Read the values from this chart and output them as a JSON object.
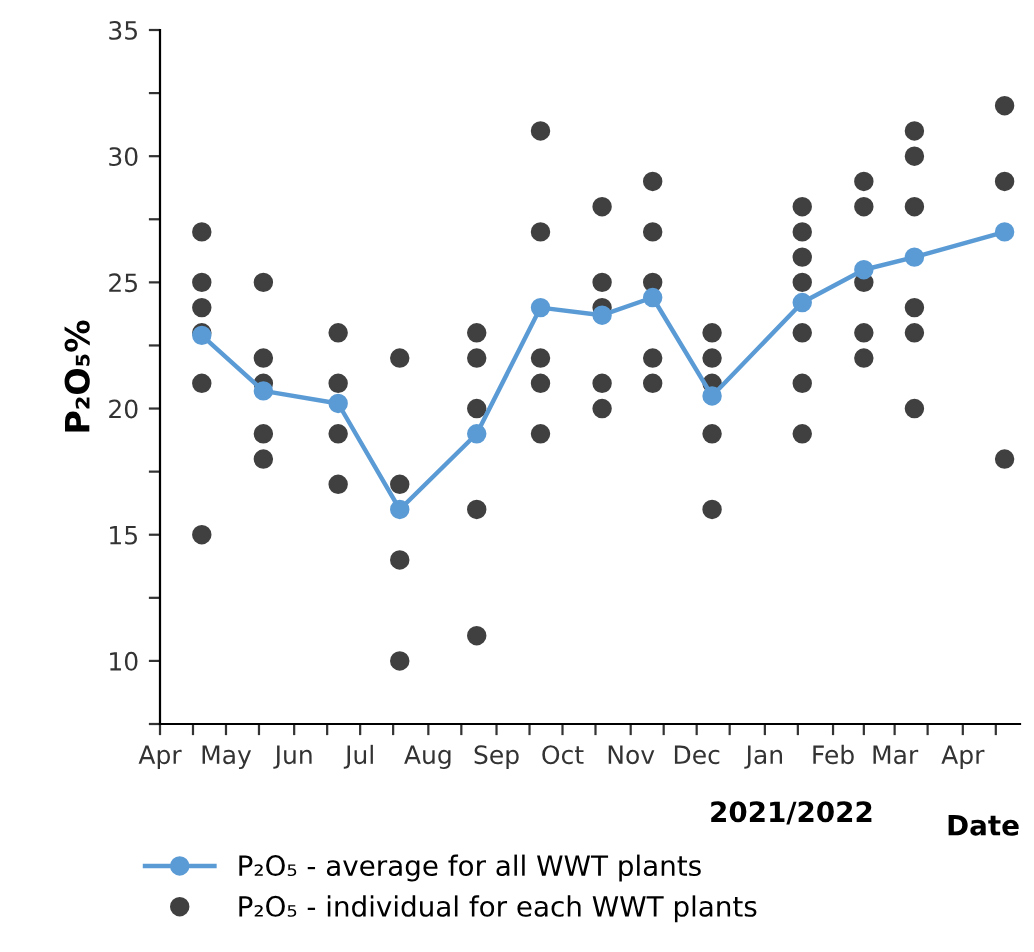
{
  "chart_data": {
    "type": "line",
    "ylabel": "P₂O₅%",
    "xlabel": "Date",
    "annotations": [
      "2021/2022"
    ],
    "series": [
      {
        "name": "P₂O₅ - average for all WWT plants",
        "color": "#5b9bd5",
        "x": [
          "2021-04-20",
          "2021-05-18",
          "2021-06-21",
          "2021-07-19",
          "2021-08-23",
          "2021-09-21",
          "2021-10-19",
          "2021-11-11",
          "2021-12-08",
          "2022-01-18",
          "2022-02-15",
          "2022-03-10",
          "2022-04-20"
        ],
        "values": [
          22.9,
          20.7,
          20.2,
          16.0,
          19.0,
          24.0,
          23.7,
          24.4,
          20.5,
          24.2,
          25.5,
          26.0,
          27.0
        ]
      },
      {
        "name": "P₂O₅ - individual for each WWT plants",
        "type": "scatter",
        "color": "#404040",
        "x": [
          "2021-04-20",
          "2021-04-20",
          "2021-04-20",
          "2021-04-20",
          "2021-04-20",
          "2021-04-20",
          "2021-05-18",
          "2021-05-18",
          "2021-05-18",
          "2021-05-18",
          "2021-05-18",
          "2021-06-21",
          "2021-06-21",
          "2021-06-21",
          "2021-06-21",
          "2021-07-19",
          "2021-07-19",
          "2021-07-19",
          "2021-07-19",
          "2021-08-23",
          "2021-08-23",
          "2021-08-23",
          "2021-08-23",
          "2021-08-23",
          "2021-09-21",
          "2021-09-21",
          "2021-09-21",
          "2021-09-21",
          "2021-09-21",
          "2021-10-19",
          "2021-10-19",
          "2021-10-19",
          "2021-10-19",
          "2021-10-19",
          "2021-11-11",
          "2021-11-11",
          "2021-11-11",
          "2021-11-11",
          "2021-11-11",
          "2021-12-08",
          "2021-12-08",
          "2021-12-08",
          "2021-12-08",
          "2021-12-08",
          "2022-01-18",
          "2022-01-18",
          "2022-01-18",
          "2022-01-18",
          "2022-01-18",
          "2022-01-18",
          "2022-01-18",
          "2022-02-15",
          "2022-02-15",
          "2022-02-15",
          "2022-02-15",
          "2022-02-15",
          "2022-03-10",
          "2022-03-10",
          "2022-03-10",
          "2022-03-10",
          "2022-03-10",
          "2022-03-10",
          "2022-04-20",
          "2022-04-20",
          "2022-04-20"
        ],
        "values": [
          27,
          25,
          24,
          23,
          21,
          15,
          25,
          22,
          21,
          19,
          18,
          23,
          21,
          19,
          17,
          22,
          17,
          14,
          10,
          23,
          22,
          20,
          16,
          11,
          31,
          27,
          22,
          21,
          19,
          28,
          25,
          24,
          21,
          20,
          29,
          27,
          25,
          22,
          21,
          23,
          22,
          21,
          19,
          16,
          28,
          27,
          26,
          25,
          23,
          21,
          19,
          29,
          28,
          25,
          23,
          22,
          31,
          30,
          28,
          24,
          23,
          20,
          32,
          29,
          18
        ]
      }
    ],
    "xlim": [
      "2021-04-01",
      "2022-04-27"
    ],
    "xticks": [
      {
        "value": "2021-04-01",
        "label": "Apr"
      },
      {
        "value": "2021-04-16",
        "label": null
      },
      {
        "value": "2021-05-01",
        "label": "May"
      },
      {
        "value": "2021-05-16",
        "label": null
      },
      {
        "value": "2021-06-01",
        "label": "Jun"
      },
      {
        "value": "2021-06-16",
        "label": null
      },
      {
        "value": "2021-07-01",
        "label": "Jul"
      },
      {
        "value": "2021-07-16",
        "label": null
      },
      {
        "value": "2021-08-01",
        "label": "Aug"
      },
      {
        "value": "2021-08-16",
        "label": null
      },
      {
        "value": "2021-09-01",
        "label": "Sep"
      },
      {
        "value": "2021-09-16",
        "label": null
      },
      {
        "value": "2021-10-01",
        "label": "Oct"
      },
      {
        "value": "2021-10-16",
        "label": null
      },
      {
        "value": "2021-11-01",
        "label": "Nov"
      },
      {
        "value": "2021-11-16",
        "label": null
      },
      {
        "value": "2021-12-01",
        "label": "Dec"
      },
      {
        "value": "2021-12-16",
        "label": null
      },
      {
        "value": "2022-01-01",
        "label": "Jan"
      },
      {
        "value": "2022-01-16",
        "label": null
      },
      {
        "value": "2022-02-01",
        "label": "Feb"
      },
      {
        "value": "2022-02-15",
        "label": null
      },
      {
        "value": "2022-03-01",
        "label": "Mar"
      },
      {
        "value": "2022-03-16",
        "label": null
      },
      {
        "value": "2022-04-01",
        "label": "Apr"
      },
      {
        "value": "2022-04-16",
        "label": null
      }
    ],
    "ylim": [
      7.5,
      35
    ],
    "yticks": [
      {
        "value": 7.5,
        "label": null
      },
      10,
      {
        "value": 12.5,
        "label": null
      },
      15,
      {
        "value": 17.5,
        "label": null
      },
      20,
      {
        "value": 22.5,
        "label": null
      },
      25,
      {
        "value": 27.5,
        "label": null
      },
      30,
      {
        "value": 32.5,
        "label": null
      },
      35
    ],
    "grid": false,
    "legend": "bottom",
    "marker": "circle",
    "line_style": "solid"
  }
}
